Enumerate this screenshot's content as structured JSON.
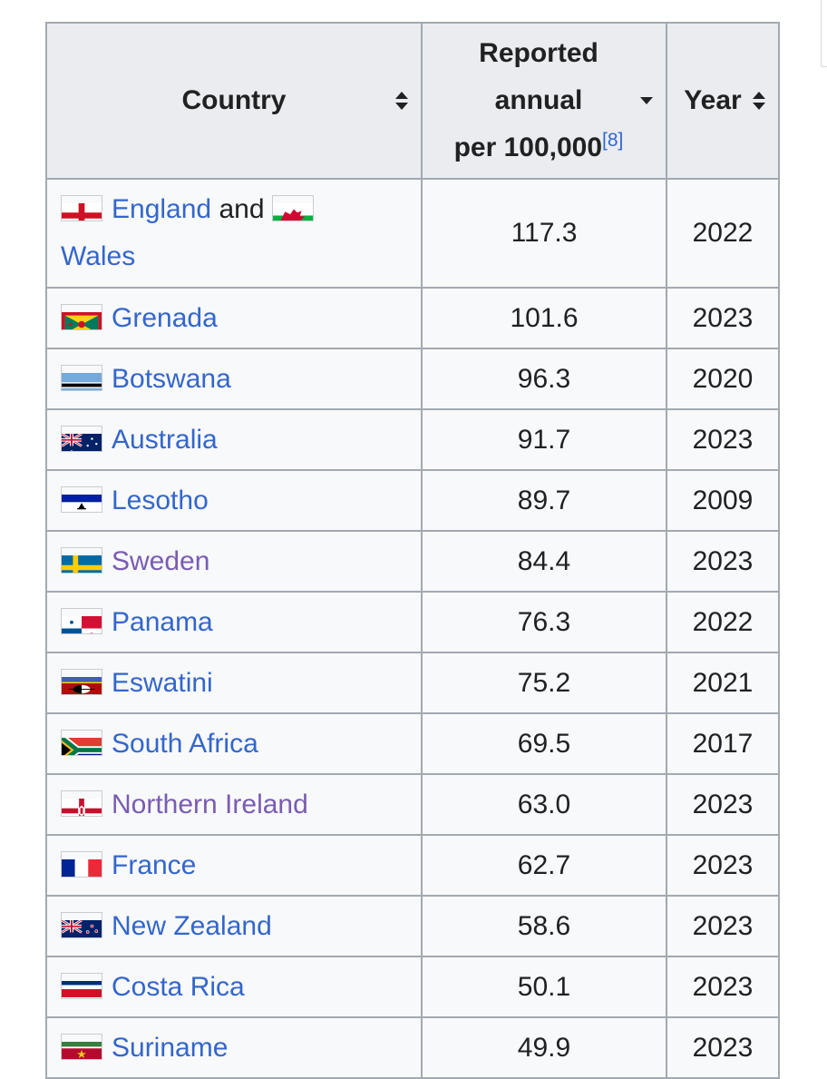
{
  "table": {
    "headers": {
      "country": "Country",
      "rate_line1": "Reported",
      "rate_line2": "annual",
      "rate_line3": "per 100,000",
      "rate_ref": "[8]",
      "year": "Year"
    },
    "first_row": {
      "country_a": "England",
      "conjunction": "and",
      "country_b": "Wales",
      "rate": "117.3",
      "year": "2022",
      "flag_a_icon": "england-flag-icon",
      "flag_b_icon": "wales-flag-icon"
    },
    "rows": [
      {
        "country": "Grenada",
        "rate": "101.6",
        "year": "2023",
        "flag_icon": "grenada-flag-icon",
        "visited": false
      },
      {
        "country": "Botswana",
        "rate": "96.3",
        "year": "2020",
        "flag_icon": "botswana-flag-icon",
        "visited": false
      },
      {
        "country": "Australia",
        "rate": "91.7",
        "year": "2023",
        "flag_icon": "australia-flag-icon",
        "visited": false
      },
      {
        "country": "Lesotho",
        "rate": "89.7",
        "year": "2009",
        "flag_icon": "lesotho-flag-icon",
        "visited": false
      },
      {
        "country": "Sweden",
        "rate": "84.4",
        "year": "2023",
        "flag_icon": "sweden-flag-icon",
        "visited": true
      },
      {
        "country": "Panama",
        "rate": "76.3",
        "year": "2022",
        "flag_icon": "panama-flag-icon",
        "visited": false
      },
      {
        "country": "Eswatini",
        "rate": "75.2",
        "year": "2021",
        "flag_icon": "eswatini-flag-icon",
        "visited": false
      },
      {
        "country": "South Africa",
        "rate": "69.5",
        "year": "2017",
        "flag_icon": "south-africa-flag-icon",
        "visited": false
      },
      {
        "country": "Northern Ireland",
        "rate": "63.0",
        "year": "2023",
        "flag_icon": "northern-ireland-flag-icon",
        "visited": true
      },
      {
        "country": "France",
        "rate": "62.7",
        "year": "2023",
        "flag_icon": "france-flag-icon",
        "visited": false
      },
      {
        "country": "New Zealand",
        "rate": "58.6",
        "year": "2023",
        "flag_icon": "new-zealand-flag-icon",
        "visited": false
      },
      {
        "country": "Costa Rica",
        "rate": "50.1",
        "year": "2023",
        "flag_icon": "costa-rica-flag-icon",
        "visited": false
      },
      {
        "country": "Suriname",
        "rate": "49.9",
        "year": "2023",
        "flag_icon": "suriname-flag-icon",
        "visited": false
      }
    ]
  },
  "colors": {
    "link": "#3366cc",
    "visited_link": "#795cb2",
    "header_bg": "#eaecf0",
    "cell_bg": "#f8f9fa",
    "border": "#a2a9b1"
  }
}
